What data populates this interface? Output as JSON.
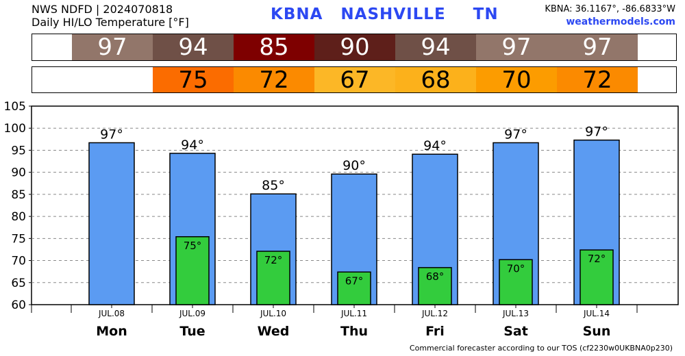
{
  "header": {
    "line1": "NWS NDFD | 2024070818",
    "line2": "Daily HI/LO Temperature [°F]",
    "station": "KBNA",
    "city": "NASHVILLE",
    "state": "TN",
    "coords": "KBNA: 36.1167°, -86.6833°W",
    "site": "weathermodels.com"
  },
  "hi_strip": [
    {
      "value": "97",
      "color": "#92766a"
    },
    {
      "value": "94",
      "color": "#6f5047"
    },
    {
      "value": "85",
      "color": "#7e0000"
    },
    {
      "value": "90",
      "color": "#5e1f1a"
    },
    {
      "value": "94",
      "color": "#6f5047"
    },
    {
      "value": "97",
      "color": "#92766a"
    },
    {
      "value": "97",
      "color": "#92766a"
    }
  ],
  "lo_strip": [
    {
      "value": "75",
      "color": "#fb6c00"
    },
    {
      "value": "72",
      "color": "#fb8a00"
    },
    {
      "value": "67",
      "color": "#fcb726"
    },
    {
      "value": "68",
      "color": "#fcb11b"
    },
    {
      "value": "70",
      "color": "#fc9c00"
    },
    {
      "value": "72",
      "color": "#fb8a00"
    }
  ],
  "chart_data": {
    "type": "bar",
    "categories": [
      "Mon",
      "Tue",
      "Wed",
      "Thu",
      "Fri",
      "Sat",
      "Sun"
    ],
    "dates": [
      "JUL.08",
      "JUL.09",
      "JUL.10",
      "JUL.11",
      "JUL.12",
      "JUL.13",
      "JUL.14"
    ],
    "series": [
      {
        "values": [
          96.7,
          94.3,
          85.1,
          89.6,
          94.1,
          96.7,
          97.3
        ],
        "labels": [
          "97°",
          "94°",
          "85°",
          "90°",
          "94°",
          "97°",
          "97°"
        ],
        "color": "#5b9bf2"
      },
      {
        "values": [
          null,
          75.4,
          72.1,
          67.4,
          68.4,
          70.2,
          72.4
        ],
        "labels": [
          "",
          "75°",
          "72°",
          "67°",
          "68°",
          "70°",
          "72°"
        ],
        "color": "#33cc3d"
      }
    ],
    "ylim": [
      60,
      105
    ],
    "yticks": [
      60,
      65,
      70,
      75,
      80,
      85,
      90,
      95,
      100,
      105
    ],
    "grid": "horizontal dashed"
  },
  "footer": "Commercial forecaster according to our TOS (cf2230w0UKBNA0p230)"
}
